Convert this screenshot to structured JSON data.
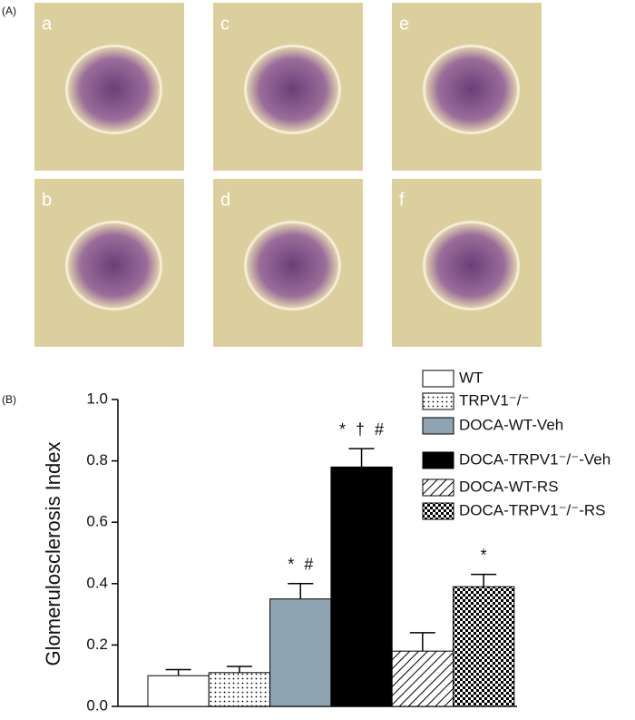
{
  "figure": {
    "panel_a_label": "(A)",
    "panel_b_label": "(B)",
    "micrographs": [
      "a",
      "b",
      "c",
      "d",
      "e",
      "f"
    ]
  },
  "chart_data": {
    "type": "bar",
    "ylabel": "Glomerulosclerosis Index",
    "ylim": [
      0,
      1
    ],
    "yticks": [
      {
        "value": 0,
        "label": "0.0"
      },
      {
        "value": 0.2,
        "label": "0.2"
      },
      {
        "value": 0.4,
        "label": "0.4"
      },
      {
        "value": 0.6,
        "label": "0.6"
      },
      {
        "value": 0.8,
        "label": "0.8"
      },
      {
        "value": 1,
        "label": "1.0"
      }
    ],
    "series": [
      {
        "name": "WT",
        "fill": "white",
        "values": [
          0.1
        ],
        "errors": [
          0.02
        ]
      },
      {
        "name": "TRPV1⁻/⁻",
        "fill": "dots",
        "values": [
          0.11
        ],
        "errors": [
          0.02
        ]
      },
      {
        "name": "DOCA-WT-Veh",
        "fill": "#8fa4b2",
        "values": [
          0.35
        ],
        "errors": [
          0.05
        ],
        "annotation": "* #"
      },
      {
        "name": "DOCA-TRPV1⁻/⁻-Veh",
        "fill": "black",
        "values": [
          0.78
        ],
        "errors": [
          0.06
        ],
        "annotation": "* † #"
      },
      {
        "name": "DOCA-WT-RS",
        "fill": "hatch",
        "values": [
          0.18
        ],
        "errors": [
          0.06
        ]
      },
      {
        "name": "DOCA-TRPV1⁻/⁻-RS",
        "fill": "checks",
        "values": [
          0.39
        ],
        "errors": [
          0.04
        ],
        "annotation": "*"
      }
    ]
  }
}
